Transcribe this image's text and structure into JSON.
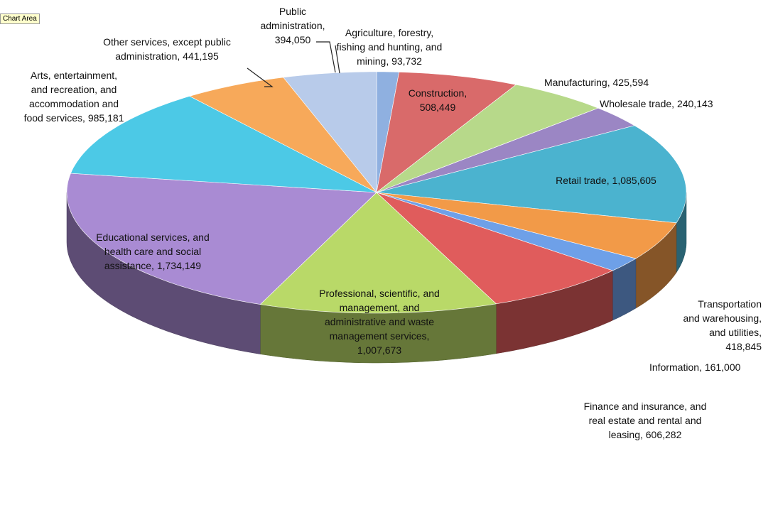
{
  "tooltip": "Chart Area",
  "chart_data": {
    "type": "pie",
    "title": "",
    "values_unit": "",
    "slices": [
      {
        "label": "Agriculture, forestry, fishing and hunting, and mining, 93,732",
        "value": 93732,
        "color": "#8fb0e0"
      },
      {
        "label": "Construction, 508,449",
        "value": 508449,
        "color": "#d96a6a"
      },
      {
        "label": "Manufacturing, 425,594",
        "value": 425594,
        "color": "#b7d98a"
      },
      {
        "label": "Wholesale trade, 240,143",
        "value": 240143,
        "color": "#9b86c4"
      },
      {
        "label": "Retail trade, 1,085,605",
        "value": 1085605,
        "color": "#4bb3cf"
      },
      {
        "label": "Transportation and warehousing, and utilities, 418,845",
        "value": 418845,
        "color": "#f29a48"
      },
      {
        "label": "Information, 161,000",
        "value": 161000,
        "color": "#6ea0e8"
      },
      {
        "label": "Finance and insurance, and real estate and rental and leasing, 606,282",
        "value": 606282,
        "color": "#e05c5c"
      },
      {
        "label": "Professional, scientific, and management, and administrative and waste management services, 1,007,673",
        "value": 1007673,
        "color": "#b9d968"
      },
      {
        "label": "Educational services, and health care and social assistance, 1,734,149",
        "value": 1734149,
        "color": "#a98bd3"
      },
      {
        "label": "Arts, entertainment, and recreation, and accommodation and food services, 985,181",
        "value": 985181,
        "color": "#4cc9e6"
      },
      {
        "label": "Other services, except public administration, 441,195",
        "value": 441195,
        "color": "#f7a95a"
      },
      {
        "label": "Public administration, 394,050",
        "value": 394050,
        "color": "#b8cbea"
      }
    ]
  }
}
